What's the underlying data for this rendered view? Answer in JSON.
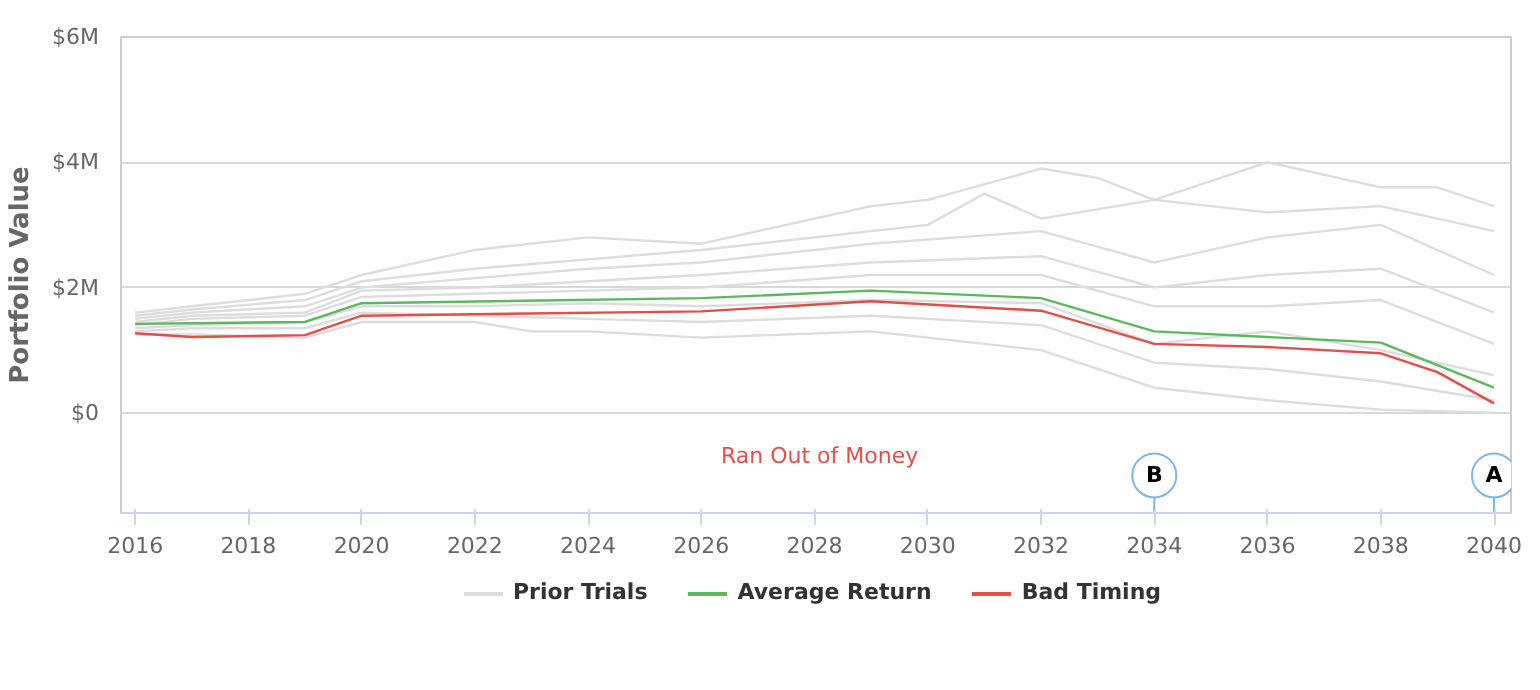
{
  "chart_data": {
    "type": "line",
    "ylabel": "Portfolio Value",
    "xlim": [
      2015.75,
      2040.3
    ],
    "xticks": [
      2016,
      2018,
      2020,
      2022,
      2024,
      2026,
      2028,
      2030,
      2032,
      2034,
      2036,
      2038,
      2040
    ],
    "ylim": [
      -1.6,
      6
    ],
    "yticks": [
      {
        "value": 0,
        "label": "$0"
      },
      {
        "value": 2,
        "label": "$2M"
      },
      {
        "value": 4,
        "label": "$4M"
      },
      {
        "value": 6,
        "label": "$6M"
      }
    ],
    "grid": "y",
    "legend": "bottom",
    "line_style": "solid",
    "marker": "none",
    "series": [
      {
        "name": "Prior Trials",
        "color": "#dddddd",
        "x": [
          2016,
          2017,
          2019,
          2020,
          2022,
          2024,
          2026,
          2029,
          2030,
          2032,
          2033,
          2034,
          2036,
          2038,
          2039,
          2040
        ],
        "values": [
          1.6,
          1.7,
          1.9,
          2.2,
          2.6,
          2.8,
          2.7,
          3.3,
          3.4,
          3.9,
          3.75,
          3.4,
          4.0,
          3.6,
          3.6,
          3.3
        ]
      },
      {
        "color": "#dddddd",
        "x": [
          2016,
          2017,
          2019,
          2020,
          2022,
          2024,
          2026,
          2029,
          2030,
          2031,
          2032,
          2034,
          2036,
          2038,
          2040
        ],
        "values": [
          1.55,
          1.65,
          1.8,
          2.1,
          2.3,
          2.45,
          2.6,
          2.9,
          3.0,
          3.5,
          3.1,
          3.4,
          3.2,
          3.3,
          2.9
        ]
      },
      {
        "color": "#dddddd",
        "x": [
          2016,
          2017,
          2019,
          2020,
          2022,
          2024,
          2026,
          2029,
          2032,
          2034,
          2036,
          2038,
          2040
        ],
        "values": [
          1.5,
          1.6,
          1.7,
          2.0,
          2.15,
          2.3,
          2.4,
          2.7,
          2.9,
          2.4,
          2.8,
          3.0,
          2.2
        ]
      },
      {
        "color": "#dddddd",
        "x": [
          2016,
          2017,
          2019,
          2020,
          2022,
          2024,
          2026,
          2029,
          2032,
          2034,
          2036,
          2038,
          2040
        ],
        "values": [
          1.45,
          1.55,
          1.6,
          1.95,
          2.0,
          2.1,
          2.2,
          2.4,
          2.5,
          2.0,
          2.2,
          2.3,
          1.6
        ]
      },
      {
        "color": "#dddddd",
        "x": [
          2016,
          2017,
          2019,
          2020,
          2022,
          2024,
          2026,
          2029,
          2032,
          2034,
          2036,
          2038,
          2040
        ],
        "values": [
          1.4,
          1.5,
          1.55,
          1.85,
          1.9,
          1.95,
          2.0,
          2.2,
          2.2,
          1.7,
          1.7,
          1.8,
          1.1
        ]
      },
      {
        "color": "#dddddd",
        "x": [
          2016,
          2017,
          2019,
          2020,
          2022,
          2024,
          2026,
          2029,
          2032,
          2034,
          2036,
          2038,
          2040
        ],
        "values": [
          1.35,
          1.4,
          1.45,
          1.7,
          1.7,
          1.75,
          1.7,
          1.8,
          1.75,
          1.1,
          1.3,
          1.0,
          0.6
        ]
      },
      {
        "color": "#dddddd",
        "x": [
          2016,
          2017,
          2019,
          2020,
          2022,
          2024,
          2026,
          2029,
          2032,
          2034,
          2036,
          2038,
          2040
        ],
        "values": [
          1.3,
          1.35,
          1.35,
          1.6,
          1.55,
          1.5,
          1.45,
          1.55,
          1.4,
          0.8,
          0.7,
          0.5,
          0.2
        ]
      },
      {
        "color": "#dddddd",
        "x": [
          2016,
          2017,
          2019,
          2020,
          2022,
          2023,
          2024,
          2026,
          2029,
          2032,
          2034,
          2036,
          2038,
          2040
        ],
        "values": [
          1.25,
          1.25,
          1.2,
          1.45,
          1.45,
          1.3,
          1.3,
          1.2,
          1.3,
          1.0,
          0.4,
          0.2,
          0.05,
          0
        ]
      },
      {
        "name": "Average Return",
        "color": "#5cb85c",
        "x": [
          2016,
          2019,
          2020,
          2026,
          2029,
          2032,
          2034,
          2038,
          2040
        ],
        "values": [
          1.42,
          1.45,
          1.75,
          1.83,
          1.95,
          1.83,
          1.3,
          1.12,
          0.4
        ]
      },
      {
        "name": "Bad Timing",
        "color": "#e0504a",
        "x": [
          2016,
          2017,
          2019,
          2020,
          2026,
          2029,
          2032,
          2034,
          2036,
          2038,
          2039,
          2040
        ],
        "values": [
          1.27,
          1.21,
          1.24,
          1.55,
          1.62,
          1.78,
          1.63,
          1.1,
          1.05,
          0.95,
          0.65,
          0.15
        ]
      }
    ],
    "annotations": [
      "Ran Out of Money",
      {
        "text": "B",
        "x": 2034,
        "y": -1.0
      },
      {
        "text": "A",
        "x": 2040,
        "y": -1.0
      }
    ]
  }
}
